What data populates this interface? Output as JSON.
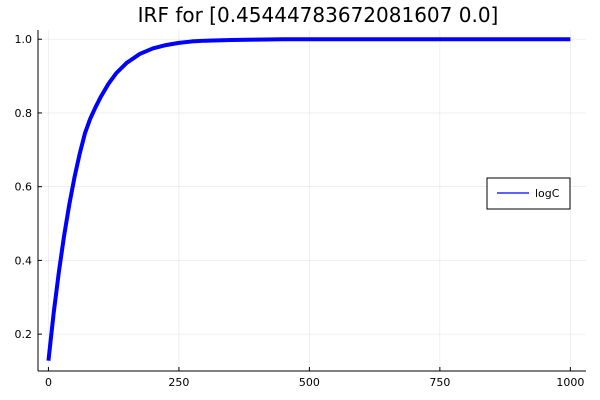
{
  "chart_data": {
    "type": "line",
    "title": "IRF for [0.45444783672081607 0.0]",
    "xlabel": "",
    "ylabel": "",
    "xlim": [
      -20,
      1030
    ],
    "ylim": [
      0.1,
      1.025
    ],
    "xticks": [
      0,
      250,
      500,
      750,
      1000
    ],
    "xtick_labels": [
      "0",
      "250",
      "500",
      "750",
      "1000"
    ],
    "yticks": [
      0.2,
      0.4,
      0.6,
      0.8,
      1.0
    ],
    "ytick_labels": [
      "0.2",
      "0.4",
      "0.6",
      "0.8",
      "1.0"
    ],
    "grid": true,
    "legend_position": "right",
    "series": [
      {
        "name": "logC",
        "color": "#0000ff",
        "x": [
          0,
          10,
          20,
          30,
          40,
          50,
          60,
          70,
          80,
          90,
          100,
          115,
          130,
          150,
          175,
          200,
          225,
          250,
          275,
          300,
          350,
          400,
          450,
          500,
          550,
          600,
          700,
          800,
          900,
          1000
        ],
        "y": [
          0.128,
          0.257,
          0.369,
          0.467,
          0.552,
          0.626,
          0.69,
          0.745,
          0.784,
          0.815,
          0.843,
          0.879,
          0.908,
          0.936,
          0.96,
          0.975,
          0.984,
          0.99,
          0.994,
          0.996,
          0.998,
          0.999,
          1.0,
          1.0,
          1.0,
          1.0,
          1.0,
          1.0,
          1.0,
          1.0
        ]
      }
    ]
  }
}
